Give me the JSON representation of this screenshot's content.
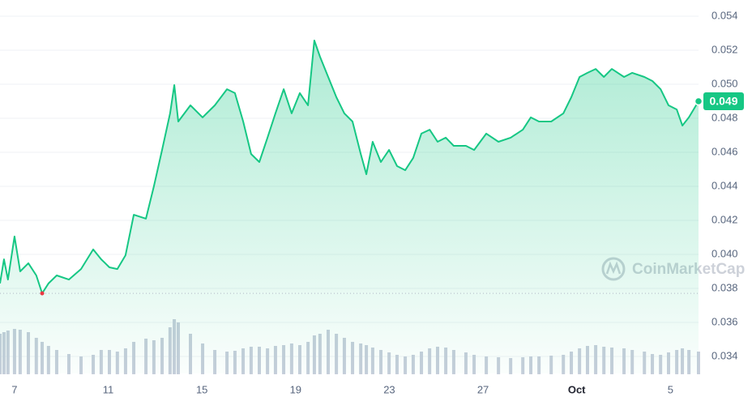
{
  "chart_data": {
    "type": "line",
    "x": [
      -0.62,
      -0.45,
      -0.28,
      0,
      0.24,
      0.59,
      0.93,
      1.18,
      1.45,
      1.8,
      2.32,
      2.84,
      3.36,
      3.7,
      4.05,
      4.39,
      4.74,
      5.09,
      5.61,
      5.95,
      6.3,
      6.64,
      6.82,
      6.99,
      7.51,
      8.03,
      8.55,
      9.07,
      9.41,
      9.76,
      10.1,
      10.45,
      10.8,
      11.14,
      11.49,
      11.83,
      12.18,
      12.53,
      12.8,
      13.04,
      13.39,
      13.74,
      14.08,
      14.43,
      14.78,
      15.02,
      15.29,
      15.64,
      15.99,
      16.33,
      16.68,
      17.02,
      17.37,
      17.72,
      18.06,
      18.41,
      18.75,
      19.27,
      19.62,
      20.14,
      20.66,
      21.18,
      21.7,
      22.04,
      22.39,
      22.91,
      23.43,
      23.77,
      24.12,
      24.46,
      24.81,
      25.16,
      25.5,
      26.02,
      26.37,
      26.89,
      27.23,
      27.58,
      27.92,
      28.27,
      28.51,
      28.79,
      29.2
    ],
    "values": [
      0.03829,
      0.03971,
      0.03852,
      0.04105,
      0.039,
      0.03948,
      0.03876,
      0.03771,
      0.03829,
      0.03876,
      0.03852,
      0.03914,
      0.04029,
      0.03971,
      0.03924,
      0.03914,
      0.03995,
      0.04233,
      0.0421,
      0.044,
      0.04614,
      0.04829,
      0.04995,
      0.04781,
      0.04876,
      0.04805,
      0.04876,
      0.04971,
      0.04948,
      0.04781,
      0.0459,
      0.04543,
      0.04686,
      0.04829,
      0.04971,
      0.04829,
      0.04948,
      0.04876,
      0.05257,
      0.05162,
      0.05043,
      0.04924,
      0.04829,
      0.04781,
      0.0459,
      0.04471,
      0.04662,
      0.04543,
      0.04614,
      0.04519,
      0.04495,
      0.04567,
      0.0471,
      0.04733,
      0.04662,
      0.04686,
      0.04638,
      0.04638,
      0.04614,
      0.0471,
      0.04662,
      0.04686,
      0.04733,
      0.04805,
      0.04781,
      0.04781,
      0.04829,
      0.04924,
      0.05043,
      0.05067,
      0.0509,
      0.05043,
      0.0509,
      0.05043,
      0.05067,
      0.05043,
      0.05019,
      0.04971,
      0.04876,
      0.04852,
      0.04757,
      0.04805,
      0.049
    ],
    "volume": [
      50,
      52,
      54,
      56,
      55,
      52,
      45,
      40,
      35,
      30,
      25,
      22,
      24,
      30,
      30,
      28,
      32,
      40,
      44,
      42,
      45,
      58,
      68,
      64,
      50,
      38,
      30,
      28,
      29,
      32,
      34,
      34,
      32,
      35,
      36,
      38,
      36,
      40,
      48,
      50,
      55,
      50,
      45,
      40,
      38,
      36,
      33,
      30,
      27,
      24,
      22,
      24,
      28,
      32,
      34,
      33,
      30,
      27,
      24,
      22,
      21,
      20,
      21,
      22,
      22,
      23,
      24,
      28,
      32,
      35,
      36,
      34,
      33,
      32,
      30,
      28,
      25,
      24,
      27,
      30,
      32,
      30,
      28
    ],
    "vlim": [
      0,
      100
    ],
    "color": "#16c784",
    "volume_color": "#c7cedb",
    "xlim": [
      -0.62,
      29.2
    ],
    "xticks": [
      {
        "value": 0,
        "label": "7"
      },
      {
        "value": 4,
        "label": "11"
      },
      {
        "value": 8,
        "label": "15"
      },
      {
        "value": 12,
        "label": "19"
      },
      {
        "value": 16,
        "label": "23"
      },
      {
        "value": 20,
        "label": "27"
      },
      {
        "value": 24,
        "label": "Oct"
      },
      {
        "value": 28,
        "label": "5"
      }
    ],
    "ylim": [
      0.033,
      0.055
    ],
    "yticks": [
      0.034,
      0.036,
      0.038,
      {
        "value": 0.04,
        "label": "0.040"
      },
      0.042,
      0.044,
      0.046,
      0.048,
      {
        "value": 0.05,
        "label": "0.050"
      },
      0.052,
      0.054
    ],
    "grid": true,
    "last_label": "0.049",
    "watermark": "CoinMarketCap"
  }
}
